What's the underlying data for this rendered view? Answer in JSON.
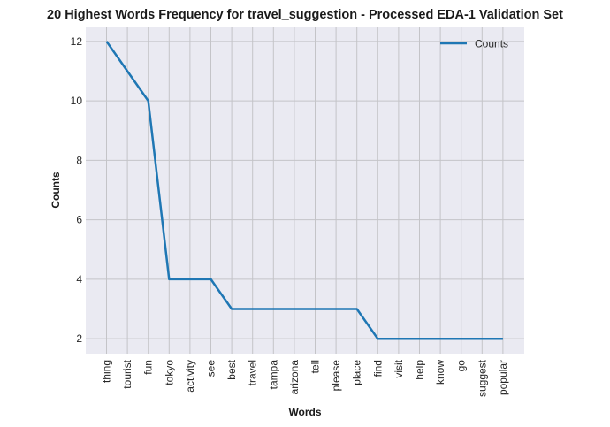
{
  "chart_data": {
    "type": "line",
    "title": "20 Highest Words Frequency for travel_suggestion - Processed EDA-1 Validation Set",
    "xlabel": "Words",
    "ylabel": "Counts",
    "categories": [
      "thing",
      "tourist",
      "fun",
      "tokyo",
      "activity",
      "see",
      "best",
      "travel",
      "tampa",
      "arizona",
      "tell",
      "please",
      "place",
      "find",
      "visit",
      "help",
      "know",
      "go",
      "suggest",
      "popular"
    ],
    "series": [
      {
        "name": "Counts",
        "values": [
          12,
          11,
          10,
          4,
          4,
          4,
          3,
          3,
          3,
          3,
          3,
          3,
          3,
          2,
          2,
          2,
          2,
          2,
          2,
          2
        ],
        "color": "#1f77b4"
      }
    ],
    "ylim": [
      1.5,
      12.5
    ],
    "yticks": [
      "2",
      "4",
      "6",
      "8",
      "10",
      "12"
    ],
    "grid": true,
    "legend_position": "upper-right",
    "background_color": "#eaeaf2",
    "grid_color": "#c4c4c8"
  }
}
